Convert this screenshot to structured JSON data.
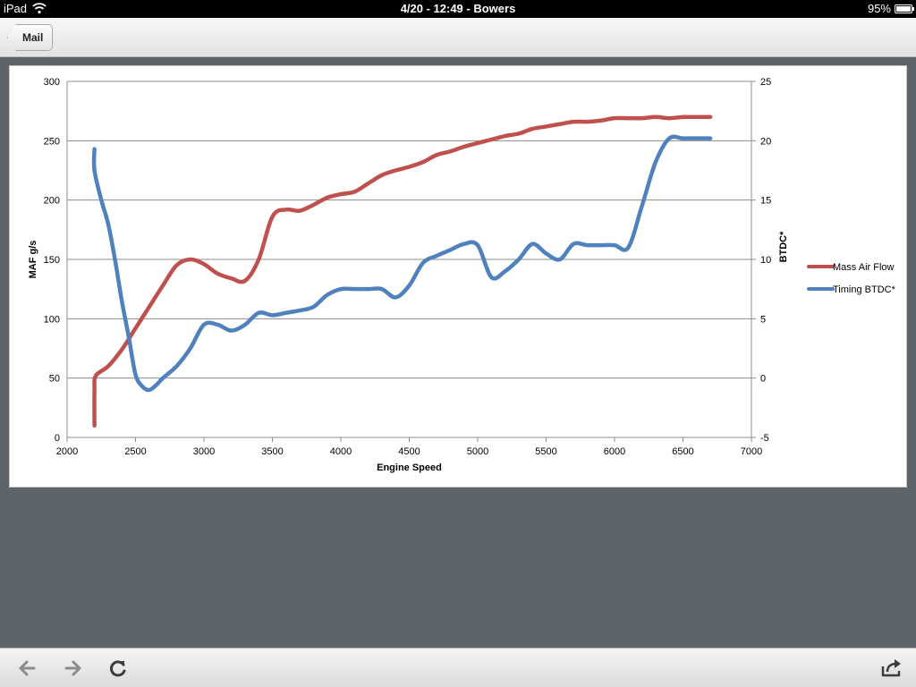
{
  "status_bar": {
    "carrier": "iPad",
    "time_title": "4/20 - 12:49 - Bowers",
    "battery": "95%"
  },
  "nav": {
    "back_label": "Mail"
  },
  "toolbar": {
    "back_icon": "arrow-left-icon",
    "forward_icon": "arrow-right-icon",
    "reload_icon": "reload-icon",
    "share_icon": "share-icon"
  },
  "chart_data": {
    "type": "line",
    "title": "",
    "xlabel": "Engine Speed",
    "ylabel": "MAF g/s",
    "y2label": "BTDC*",
    "xlim": [
      2000,
      7000
    ],
    "ylim": [
      0,
      300
    ],
    "y2lim": [
      -5,
      25
    ],
    "xticks": [
      "2000",
      "2500",
      "3000",
      "3500",
      "4000",
      "4500",
      "5000",
      "5500",
      "6000",
      "6500",
      "7000"
    ],
    "yticks": [
      "0",
      "50",
      "100",
      "150",
      "200",
      "250",
      "300"
    ],
    "y2ticks": [
      "-5",
      "0",
      "5",
      "10",
      "15",
      "20",
      "25"
    ],
    "grid": true,
    "legend_position": "right",
    "series": [
      {
        "name": "Mass Air Flow",
        "axis": "left",
        "color": "#c0504d",
        "x": [
          2200,
          2200,
          2210,
          2300,
          2400,
          2500,
          2600,
          2700,
          2800,
          2900,
          3000,
          3100,
          3200,
          3300,
          3400,
          3500,
          3600,
          3700,
          3800,
          3900,
          4000,
          4100,
          4200,
          4300,
          4400,
          4500,
          4600,
          4700,
          4800,
          4900,
          5000,
          5100,
          5200,
          5300,
          5400,
          5500,
          5600,
          5700,
          5800,
          5900,
          6000,
          6100,
          6200,
          6300,
          6400,
          6500,
          6600,
          6700
        ],
        "values": [
          10,
          40,
          52,
          60,
          74,
          92,
          110,
          128,
          145,
          150,
          146,
          138,
          134,
          132,
          150,
          186,
          192,
          191,
          196,
          202,
          205,
          207,
          214,
          221,
          225,
          228,
          232,
          238,
          241,
          245,
          248,
          251,
          254,
          256,
          260,
          262,
          264,
          266,
          266,
          267,
          269,
          269,
          269,
          270,
          269,
          270,
          270,
          270
        ]
      },
      {
        "name": "Timing BTDC*",
        "axis": "right",
        "color": "#4f81bd",
        "x": [
          2200,
          2200,
          2250,
          2300,
          2350,
          2400,
          2450,
          2500,
          2550,
          2600,
          2650,
          2700,
          2800,
          2900,
          3000,
          3100,
          3200,
          3300,
          3400,
          3500,
          3600,
          3700,
          3800,
          3900,
          4000,
          4100,
          4200,
          4300,
          4400,
          4500,
          4600,
          4700,
          4800,
          4900,
          5000,
          5100,
          5200,
          5300,
          5400,
          5500,
          5600,
          5700,
          5800,
          5900,
          6000,
          6100,
          6200,
          6300,
          6400,
          6500,
          6600,
          6700
        ],
        "values": [
          19.3,
          17.5,
          15.0,
          13.0,
          10.0,
          6.5,
          3.5,
          0.3,
          -0.7,
          -1.0,
          -0.6,
          0.0,
          1.0,
          2.5,
          4.5,
          4.5,
          4.0,
          4.5,
          5.5,
          5.3,
          5.5,
          5.7,
          6.0,
          7.0,
          7.5,
          7.5,
          7.5,
          7.5,
          6.8,
          7.8,
          9.7,
          10.3,
          10.8,
          11.3,
          11.2,
          8.5,
          9.0,
          10.0,
          11.3,
          10.5,
          10.0,
          11.3,
          11.2,
          11.2,
          11.2,
          11.0,
          14.5,
          18.2,
          20.2,
          20.2,
          20.2,
          20.2
        ]
      }
    ]
  }
}
